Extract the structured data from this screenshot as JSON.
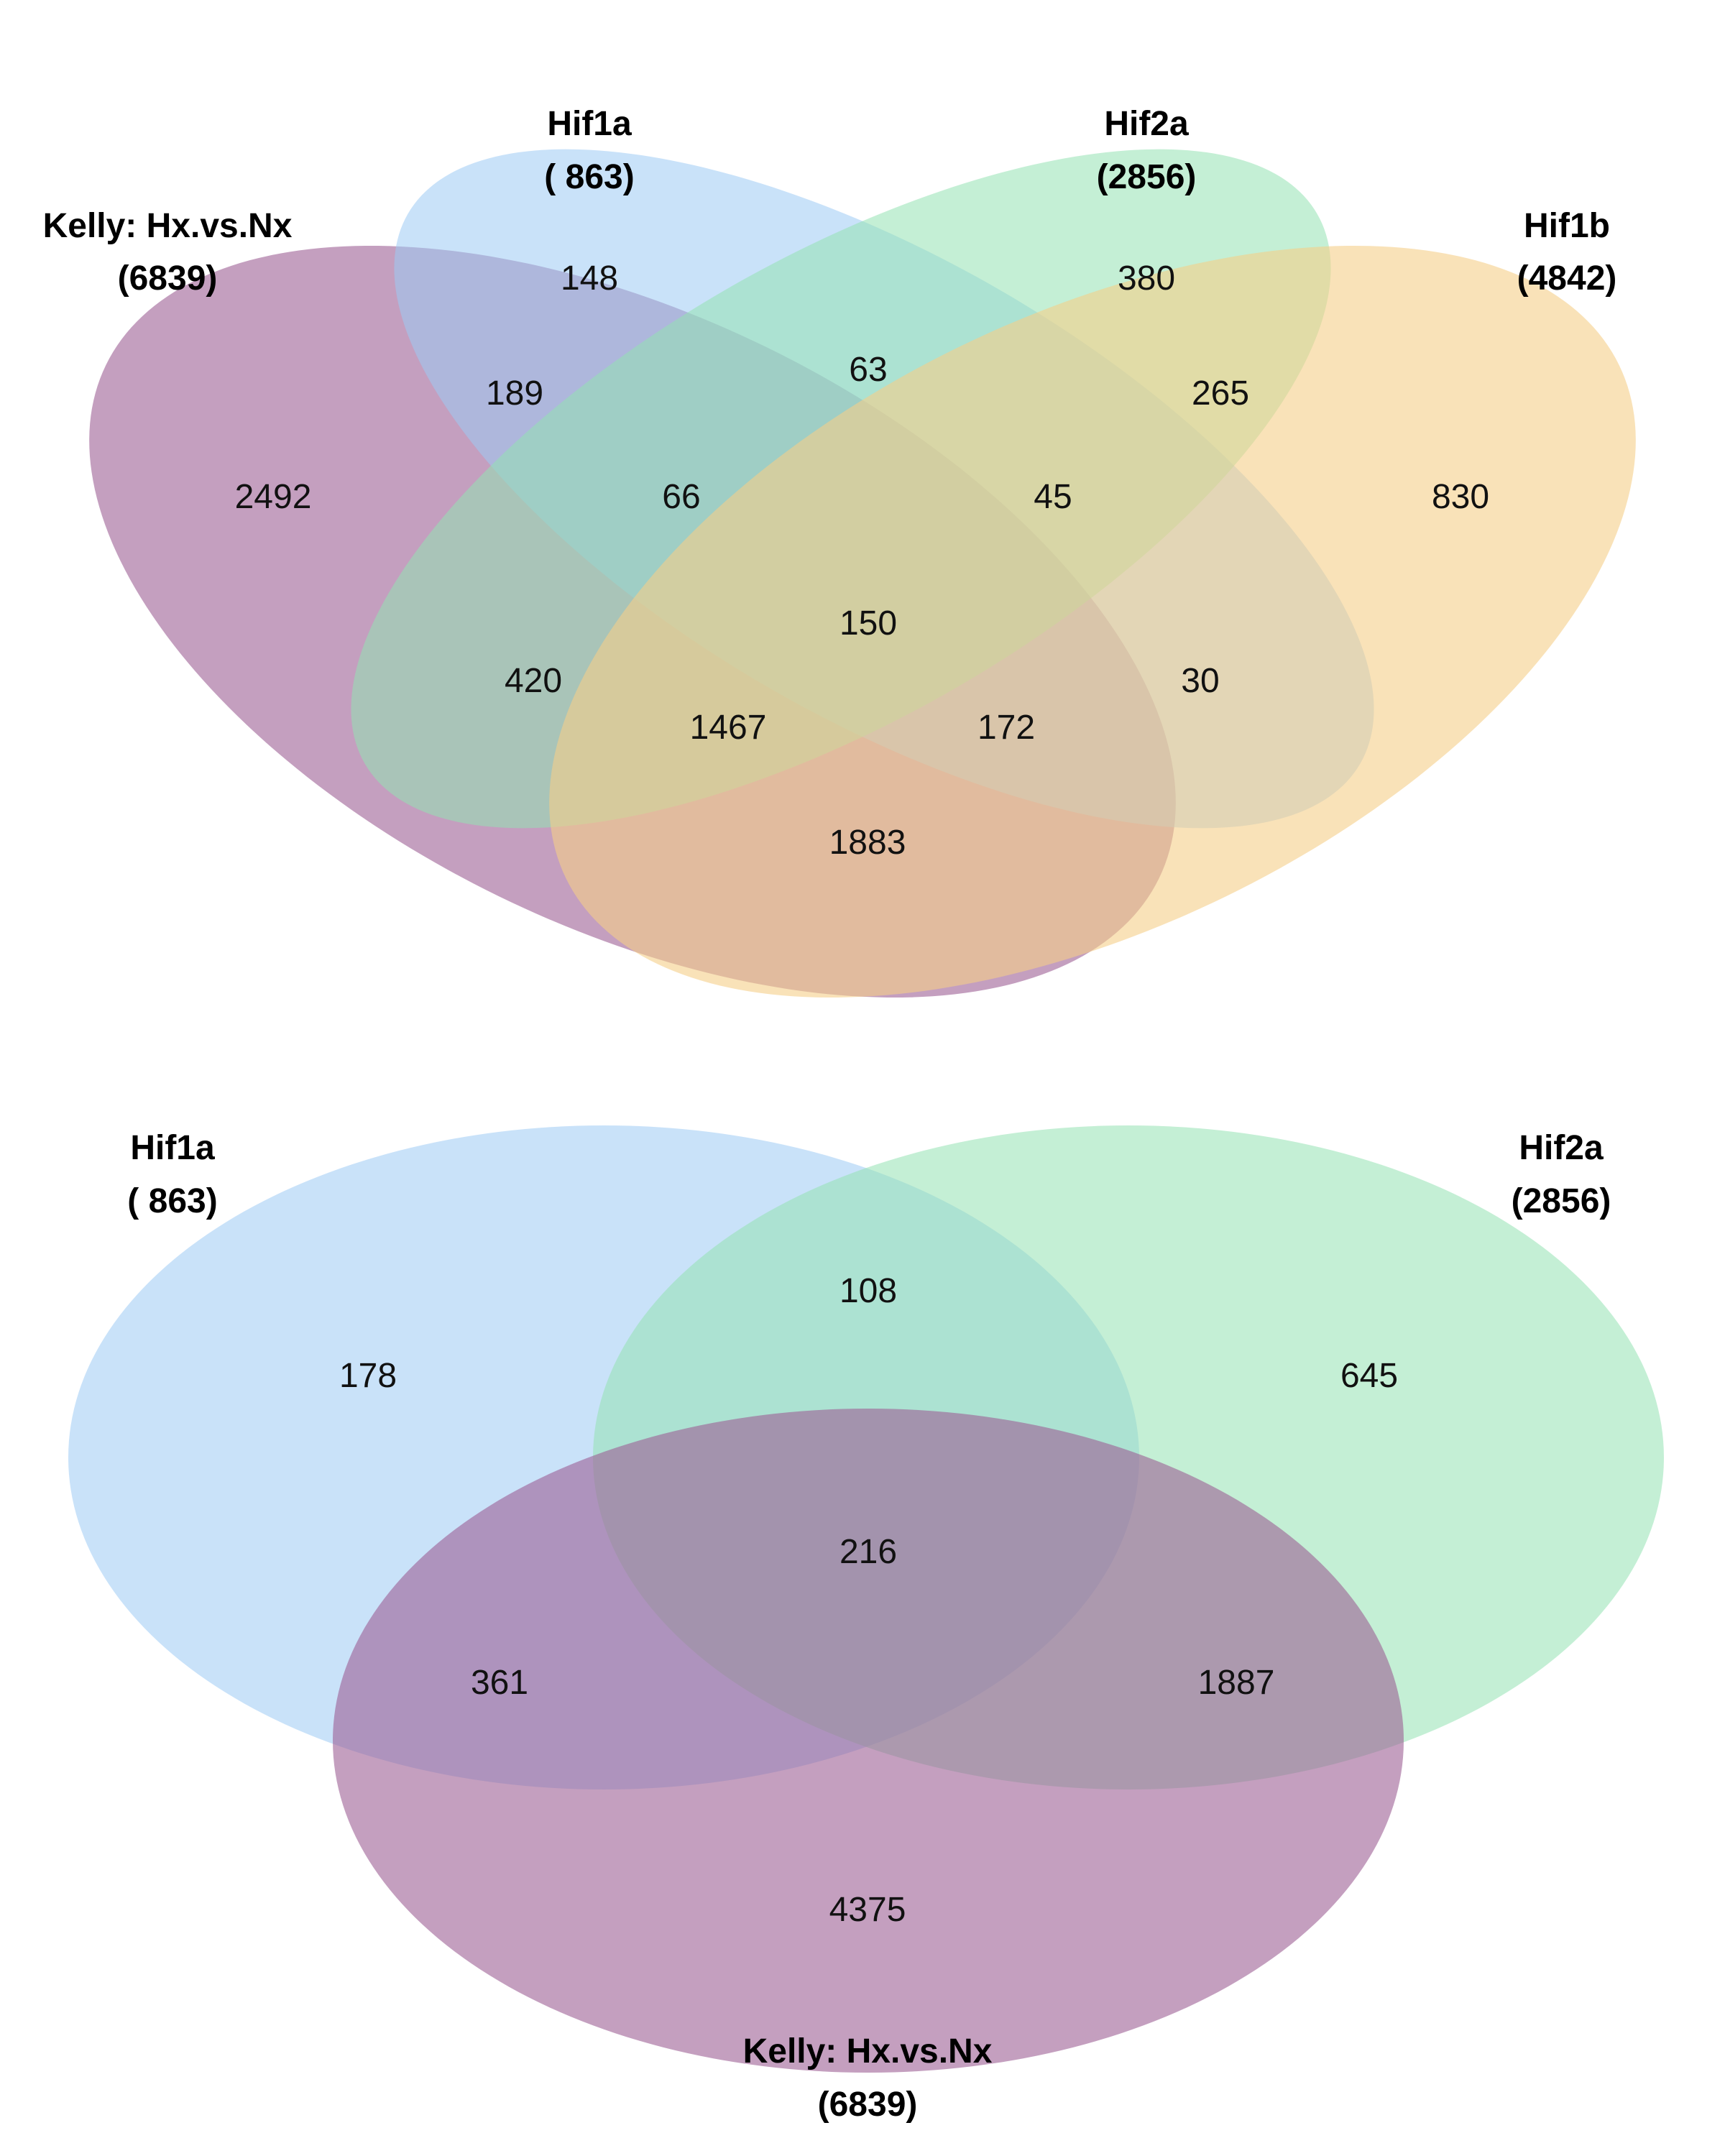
{
  "sets": {
    "kelly": {
      "name": "Kelly: Hx.vs.Nx",
      "count": "(6839)",
      "color": "#9c5f95"
    },
    "hif1a": {
      "name": "Hif1a",
      "count": "( 863)",
      "color": "#9ccbf4"
    },
    "hif2a": {
      "name": "Hif2a",
      "count": "(2856)",
      "color": "#94e1b2"
    },
    "hif1b": {
      "name": "Hif1b",
      "count": "(4842)",
      "color": "#f5cf88"
    }
  },
  "venn_four": {
    "regions": {
      "hif1a_only": "148",
      "hif2a_only": "380",
      "kelly_only": "2492",
      "hif1b_only": "830",
      "kelly_hif1a": "189",
      "hif1a_hif2a": "63",
      "hif2a_hif1b": "265",
      "kelly_hif1a_hif2a": "66",
      "hif1a_hif2a_hif1b": "45",
      "all_four": "150",
      "kelly_hif2a": "420",
      "hif1a_hif1b": "30",
      "kelly_hif2a_hif1b": "1467",
      "kelly_hif1a_hif1b": "172",
      "kelly_hif1b": "1883"
    }
  },
  "venn_three": {
    "regions": {
      "hif1a_only": "178",
      "hif1a_hif2a": "108",
      "hif2a_only": "645",
      "all_three": "216",
      "hif1a_kelly": "361",
      "hif2a_kelly": "1887",
      "kelly_only": "4375"
    }
  }
}
